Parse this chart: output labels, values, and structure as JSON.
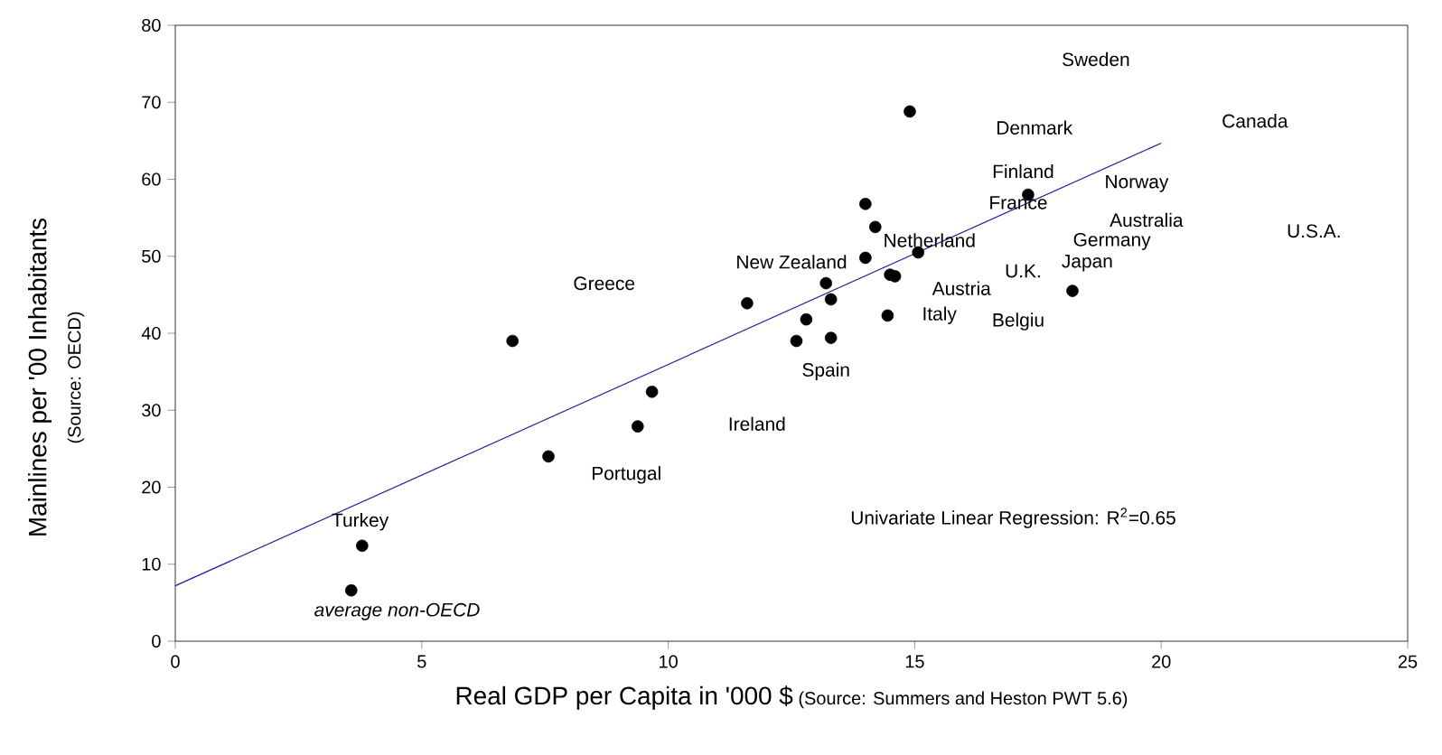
{
  "chart_data": {
    "type": "scatter",
    "xlabel": "Real GDP per Capita in '000 $",
    "ylabel": "Mainlines per '00 Inhabitants",
    "xlim": [
      0,
      25
    ],
    "xticks": [
      0,
      5,
      10,
      15,
      20,
      25
    ],
    "ylim": [
      0,
      80
    ],
    "yticks": [
      0,
      10,
      20,
      30,
      40,
      50,
      60,
      70,
      80
    ],
    "grid": false,
    "series": [
      {
        "color": "#000000",
        "marker": "circle",
        "x": [
          3.57,
          3.79,
          6.84,
          7.57,
          9.38,
          9.67,
          11.6,
          12.6,
          12.8,
          13.2,
          13.3,
          13.3,
          14.0,
          14.2,
          14.0,
          15.07,
          14.5,
          14.6,
          14.45,
          14.9,
          17.3,
          18.2
        ],
        "values": [
          6.6,
          12.4,
          39.0,
          24.0,
          27.9,
          32.4,
          43.9,
          39.0,
          41.8,
          46.5,
          44.4,
          39.4,
          49.8,
          53.8,
          56.8,
          50.5,
          47.6,
          47.4,
          42.3,
          68.8,
          58.0,
          45.5
        ]
      },
      {
        "type": "line",
        "color": "#1c1c9c",
        "marker": "none",
        "line_style": "solid",
        "x": [
          0,
          20
        ],
        "values": [
          7.2,
          64.7
        ]
      }
    ],
    "annotations": [
      "Sweden",
      "Denmark",
      "Canada",
      "Finland",
      "France",
      "Norway",
      "Australia",
      "U.S.A.",
      "Netherland",
      "Germany",
      "Japan",
      "U.K.",
      "Austria",
      "New Zealand",
      "Greece",
      "Italy",
      "Belgiu",
      "Spain",
      "Ireland",
      "Portugal",
      "Turkey",
      "average non-OECD",
      "Univariate Linear Regression: R$^{2}$=0.65",
      "(Source: OECD)",
      "(Source: Summers and Heston PWT 5.6)"
    ]
  }
}
